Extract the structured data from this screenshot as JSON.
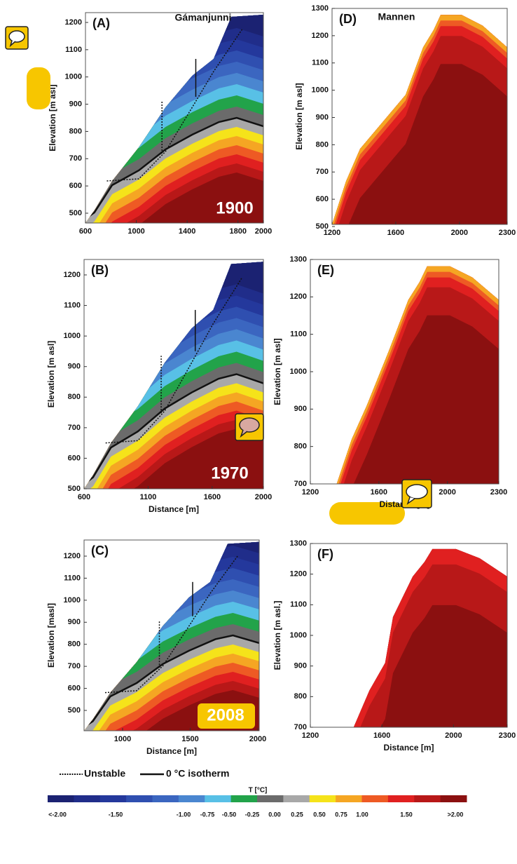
{
  "panels": [
    {
      "label": "(A)",
      "site": "Gámanjunni",
      "year": "1900",
      "y_label": "Elevation [m asl]",
      "x_ticks": [
        600,
        1000,
        1400,
        1800,
        2000
      ],
      "y_ticks": [
        500,
        600,
        700,
        800,
        900,
        1000,
        1100,
        1200
      ]
    },
    {
      "label": "(B)",
      "year": "1970",
      "y_label": "Elevation [m asl]",
      "x_label": "Distance [m]",
      "x_ticks": [
        600,
        1100,
        1600,
        2000
      ],
      "y_ticks": [
        500,
        600,
        700,
        800,
        900,
        1000,
        1100,
        1200
      ]
    },
    {
      "label": "(C)",
      "year": "2008",
      "y_label": "Elevation [masl]",
      "x_label": "Distance [m]",
      "x_ticks": [
        1000,
        1500,
        2000
      ],
      "y_ticks": [
        500,
        600,
        700,
        800,
        900,
        1000,
        1100,
        1200
      ]
    },
    {
      "label": "(D)",
      "site": "Mannen",
      "y_label": "Elevation [m asl]",
      "x_ticks": [
        1200,
        1600,
        2000,
        2300
      ],
      "y_ticks": [
        500,
        600,
        700,
        800,
        900,
        1000,
        1100,
        1200,
        1300
      ]
    },
    {
      "label": "(E)",
      "y_label": "Elevation [m asl]",
      "x_label": "Distance [m]",
      "x_ticks": [
        1200,
        1600,
        2000,
        2300
      ],
      "y_ticks": [
        700,
        800,
        900,
        1000,
        1100,
        1200,
        1300
      ]
    },
    {
      "label": "(F)",
      "y_label": "Elevation [m asl.]",
      "x_label": "Distance [m]",
      "x_ticks": [
        1200,
        1600,
        2000,
        2300
      ],
      "y_ticks": [
        700,
        800,
        900,
        1000,
        1100,
        1200,
        1300
      ]
    }
  ],
  "legend": {
    "unstable": "Unstable",
    "isotherm": "0 °C isotherm"
  },
  "colorbar": {
    "title": "T [°C]",
    "labels": [
      "<-2.00",
      "-1.50",
      "-1.00",
      "-0.75",
      "-0.50",
      "-0.25",
      "0.00",
      "0.25",
      "0.50",
      "0.75",
      "1.00",
      "1.50",
      ">2.00"
    ],
    "colors": [
      "#1b2272",
      "#202d8a",
      "#24389c",
      "#2f4fb0",
      "#3b66c0",
      "#4a86d0",
      "#58c0e6",
      "#22a34a",
      "#6b6b6b",
      "#a8a8a8",
      "#f5e31a",
      "#f5a623",
      "#ee5a24",
      "#e02020",
      "#b81818",
      "#8b1010"
    ]
  }
}
